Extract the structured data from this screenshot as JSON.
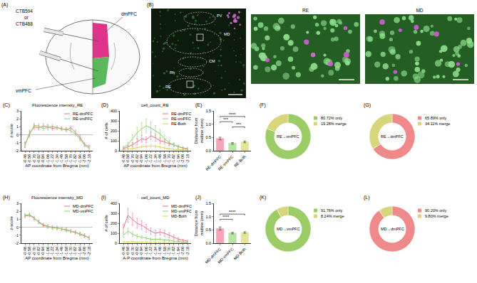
{
  "schematic": {
    "panel": "(A)",
    "tracer_labels": [
      "CTB594",
      "or",
      "CTB488"
    ],
    "regions": [
      {
        "name": "dmPFC",
        "color": "#e0338a"
      },
      {
        "name": "vmPFC",
        "color": "#5cb85c"
      }
    ]
  },
  "micrograph": {
    "panel": "(B)",
    "regions": [
      "PV",
      "MD",
      "CM",
      "Rh",
      "RE"
    ],
    "insets": [
      "RE",
      "MD"
    ]
  },
  "chart_data": [
    {
      "panel": "(C)",
      "type": "line",
      "title": "Fluorescence intensity_RE",
      "x_label": "AP coordinate from Bregma (mm)",
      "y_label": "z-score",
      "grid": false,
      "legend": "top-right",
      "categories": [
        "-0.46",
        "-0.58",
        "-0.70",
        "-0.82",
        "-0.94",
        "-1.06",
        "-1.22",
        "-1.34",
        "-1.46",
        "-1.58",
        "-1.70",
        "-1.82",
        "-1.94",
        "-2.06",
        "-2.18"
      ],
      "ylim": [
        -2,
        3
      ],
      "yticks": [
        -2,
        -1,
        0,
        1,
        2,
        3
      ],
      "series": [
        {
          "name": "RE-dmPFC",
          "color": "#f06c8c",
          "values": [
            -1.3,
            0.2,
            1.0,
            0.9,
            1.1,
            1.0,
            0.8,
            0.9,
            0.8,
            0.6,
            0.9,
            0.3,
            -0.3,
            -1.2,
            -1.5
          ],
          "errors": [
            0.3,
            0.4,
            0.3,
            0.3,
            0.3,
            0.3,
            0.2,
            0.2,
            0.2,
            0.2,
            0.2,
            0.3,
            0.3,
            0.2,
            0.2
          ]
        },
        {
          "name": "RE-vmPFC",
          "color": "#8bd06b",
          "values": [
            -1.2,
            0.0,
            1.2,
            1.1,
            0.8,
            0.9,
            1.1,
            0.9,
            0.7,
            0.7,
            0.5,
            0.1,
            -0.5,
            -1.3,
            -1.7
          ],
          "errors": [
            0.3,
            0.4,
            0.3,
            0.3,
            0.3,
            0.3,
            0.2,
            0.2,
            0.2,
            0.2,
            0.2,
            0.3,
            0.3,
            0.2,
            0.2
          ]
        }
      ]
    },
    {
      "panel": "(D)",
      "type": "line",
      "title": "cell_count_RE",
      "x_label": "AP coordinate from Bregma (mm)",
      "y_label": "# of cells",
      "grid": false,
      "legend": "top-right",
      "categories": [
        "-0.46",
        "-0.58",
        "-0.70",
        "-0.82",
        "-0.94",
        "-1.06",
        "-1.22",
        "-1.34",
        "-1.46",
        "-1.58",
        "-1.70",
        "-1.82",
        "-1.94",
        "-2.06",
        "-2.18"
      ],
      "ylim": [
        0,
        400
      ],
      "yticks": [
        0,
        100,
        200,
        300,
        400
      ],
      "series": [
        {
          "name": "RE-dmPFC",
          "color": "#f06c8c",
          "values": [
            20,
            40,
            60,
            90,
            120,
            110,
            150,
            130,
            100,
            90,
            70,
            60,
            40,
            30,
            20
          ],
          "errors": [
            10,
            15,
            20,
            30,
            35,
            30,
            40,
            35,
            30,
            25,
            20,
            15,
            15,
            10,
            10
          ]
        },
        {
          "name": "RE-vmPFC",
          "color": "#8bd06b",
          "values": [
            30,
            60,
            120,
            180,
            220,
            250,
            230,
            200,
            170,
            120,
            80,
            60,
            40,
            25,
            15
          ],
          "errors": [
            15,
            25,
            40,
            55,
            65,
            70,
            60,
            55,
            45,
            35,
            25,
            20,
            15,
            10,
            8
          ]
        },
        {
          "name": "RE-Both",
          "color": "#d6d35a",
          "values": [
            10,
            15,
            20,
            30,
            40,
            45,
            50,
            45,
            35,
            30,
            20,
            15,
            10,
            8,
            5
          ],
          "errors": [
            5,
            6,
            8,
            10,
            12,
            14,
            15,
            14,
            12,
            10,
            8,
            6,
            5,
            4,
            3
          ]
        }
      ]
    },
    {
      "panel": "(E)",
      "type": "bar",
      "y_label": "Distance from midline (mm)",
      "grid": false,
      "categories": [
        "RE-dmPFC",
        "RE-vmPFC",
        "RE-Both"
      ],
      "values": [
        0.46,
        0.28,
        0.33
      ],
      "errors": [
        0.05,
        0.03,
        0.03
      ],
      "colors": [
        "#f06c8c",
        "#8bd06b",
        "#d6d35a"
      ],
      "ylim": [
        0,
        1.5
      ],
      "yticks": [
        {
          "value": 0,
          "label": "0.0"
        },
        {
          "value": 0.5,
          "label": "0.5"
        },
        {
          "value": 1,
          "label": "1.0"
        },
        {
          "value": 1.5,
          "label": "1.5"
        }
      ],
      "significance": [
        {
          "pair": [
            "RE-vmPFC",
            "RE-Both"
          ],
          "label": "***"
        },
        {
          "pair": [
            "RE-dmPFC",
            "RE-vmPFC"
          ],
          "label": "***"
        },
        {
          "pair": [
            "RE-dmPFC",
            "RE-Both"
          ],
          "label": "****"
        }
      ]
    },
    {
      "panel": "(F)",
      "type": "pie",
      "center_label": "RE→vmPFC",
      "legend": "right",
      "labels": [
        "80.72% only",
        "19.28% merge"
      ],
      "values": [
        80.72,
        19.28
      ],
      "colors": [
        "#9ccc65",
        "#d8d67a"
      ]
    },
    {
      "panel": "(G)",
      "type": "pie",
      "center_label": "RE→dmPFC",
      "legend": "right",
      "labels": [
        "65.89% only",
        "34.11% merge"
      ],
      "values": [
        65.89,
        34.11
      ],
      "colors": [
        "#f08a8a",
        "#d8d67a"
      ]
    },
    {
      "panel": "(H)",
      "type": "line",
      "title": "Fluorescence intensity_MD",
      "x_label": "AP coordinate from Bregma (mm)",
      "y_label": "z-score",
      "grid": false,
      "legend": "top-right",
      "categories": [
        "-0.46",
        "-0.58",
        "-0.70",
        "-0.82",
        "-0.94",
        "-1.06",
        "-1.22",
        "-1.34",
        "-1.46",
        "-1.58",
        "-1.70",
        "-1.82",
        "-1.94",
        "-2.06",
        "-2.18"
      ],
      "ylim": [
        -2,
        3
      ],
      "yticks": [
        -2,
        -1,
        0,
        1,
        2,
        3
      ],
      "series": [
        {
          "name": "MD-dmPFC",
          "color": "#f06c8c",
          "values": [
            1.4,
            1.5,
            1.1,
            0.7,
            0.3,
            0.1,
            0.0,
            -0.1,
            -0.2,
            -0.3,
            -0.5,
            -0.6,
            -0.9,
            -1.1,
            -1.3
          ],
          "errors": [
            0.2,
            0.2,
            0.2,
            0.2,
            0.2,
            0.2,
            0.2,
            0.2,
            0.2,
            0.2,
            0.2,
            0.2,
            0.2,
            0.2,
            0.2
          ]
        },
        {
          "name": "MD-vmPFC",
          "color": "#8bd06b",
          "values": [
            1.5,
            1.6,
            1.2,
            0.6,
            0.2,
            0.1,
            -0.1,
            -0.1,
            -0.2,
            -0.4,
            -0.5,
            -0.7,
            -0.8,
            -1.0,
            -1.4
          ],
          "errors": [
            0.2,
            0.2,
            0.2,
            0.2,
            0.2,
            0.2,
            0.2,
            0.2,
            0.2,
            0.2,
            0.2,
            0.2,
            0.2,
            0.2,
            0.2
          ]
        }
      ]
    },
    {
      "panel": "(I)",
      "type": "line",
      "title": "cell_count_MD",
      "x_label": "A-P coordinate from Bregma (mm)",
      "y_label": "# of cells",
      "grid": false,
      "legend": "top-right",
      "categories": [
        "-0.46",
        "-0.58",
        "-0.70",
        "-0.82",
        "-0.94",
        "-1.06",
        "-1.22",
        "-1.34",
        "-1.46",
        "-1.58",
        "-1.70",
        "-1.82",
        "-1.94",
        "-2.06",
        "-2.18"
      ],
      "ylim": [
        0,
        400
      ],
      "yticks": [
        0,
        100,
        200,
        300,
        400
      ],
      "series": [
        {
          "name": "MD-dmPFC",
          "color": "#f06c8c",
          "values": [
            150,
            280,
            240,
            200,
            180,
            150,
            120,
            100,
            110,
            100,
            80,
            60,
            40,
            30,
            20
          ],
          "errors": [
            40,
            70,
            60,
            50,
            45,
            40,
            35,
            30,
            30,
            30,
            25,
            20,
            15,
            10,
            8
          ]
        },
        {
          "name": "MD-vmPFC",
          "color": "#8bd06b",
          "values": [
            80,
            120,
            90,
            70,
            60,
            50,
            40,
            40,
            40,
            30,
            30,
            20,
            20,
            10,
            10
          ],
          "errors": [
            20,
            30,
            25,
            20,
            15,
            15,
            12,
            12,
            12,
            10,
            10,
            8,
            8,
            5,
            5
          ]
        },
        {
          "name": "MD-Both",
          "color": "#d6d35a",
          "values": [
            10,
            15,
            15,
            10,
            10,
            10,
            8,
            8,
            8,
            5,
            5,
            5,
            5,
            3,
            3
          ],
          "errors": [
            4,
            5,
            5,
            4,
            4,
            4,
            3,
            3,
            3,
            2,
            2,
            2,
            2,
            1,
            1
          ]
        }
      ]
    },
    {
      "panel": "(J)",
      "type": "bar",
      "y_label": "Distance from midline (mm)",
      "grid": false,
      "categories": [
        "MD-dmPFC",
        "MD-vmPFC",
        "MD-Both"
      ],
      "values": [
        0.55,
        0.38,
        0.4
      ],
      "errors": [
        0.06,
        0.03,
        0.03
      ],
      "colors": [
        "#f06c8c",
        "#8bd06b",
        "#d6d35a"
      ],
      "ylim": [
        0,
        1.5
      ],
      "yticks": [
        {
          "value": 0,
          "label": "0.0"
        },
        {
          "value": 0.5,
          "label": "0.5"
        },
        {
          "value": 1,
          "label": "1.0"
        },
        {
          "value": 1.5,
          "label": "1.5"
        }
      ],
      "significance": [
        {
          "pair": [
            "MD-dmPFC",
            "MD-vmPFC"
          ],
          "label": "****"
        },
        {
          "pair": [
            "MD-dmPFC",
            "MD-Both"
          ],
          "label": "****"
        }
      ]
    },
    {
      "panel": "(K)",
      "type": "pie",
      "center_label": "MD→vmPFC",
      "legend": "right",
      "labels": [
        "91.76% only",
        "8.24% merge"
      ],
      "values": [
        91.76,
        8.24
      ],
      "colors": [
        "#9ccc65",
        "#d8d67a"
      ]
    },
    {
      "panel": "(L)",
      "type": "pie",
      "center_label": "MD→dmPFC",
      "legend": "right",
      "labels": [
        "90.20% only",
        "9.80% merge"
      ],
      "values": [
        90.2,
        9.8
      ],
      "colors": [
        "#f08a8a",
        "#d8d67a"
      ]
    }
  ]
}
